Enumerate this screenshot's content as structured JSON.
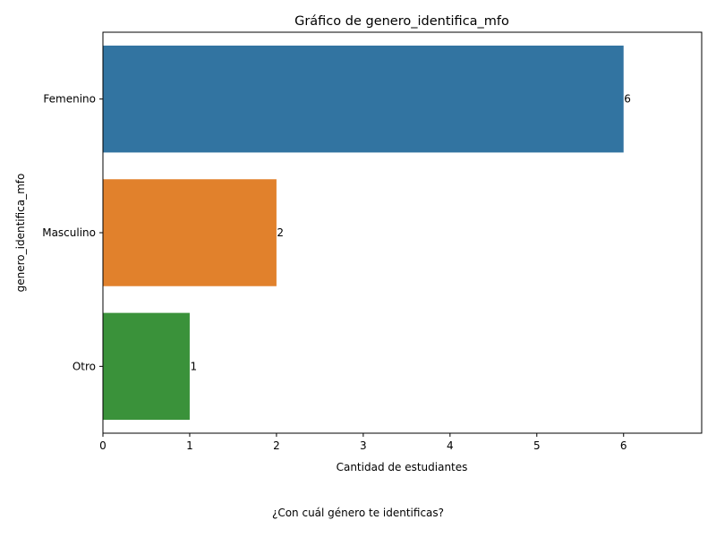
{
  "chart_data": {
    "type": "bar",
    "orientation": "horizontal",
    "title": "Gráfico de genero_identifica_mfo",
    "xlabel": "Cantidad de estudiantes",
    "ylabel": "genero_identifica_mfo",
    "categories": [
      "Femenino",
      "Masculino",
      "Otro"
    ],
    "values": [
      6,
      2,
      1
    ],
    "data_labels": [
      "6",
      "2",
      "1"
    ],
    "colors": [
      "#3274a1",
      "#e1812c",
      "#3a923a"
    ],
    "xlim": [
      0,
      6.9
    ],
    "xticks": [
      0,
      1,
      2,
      3,
      4,
      5,
      6
    ],
    "grid": false,
    "legend": "none"
  },
  "caption": "¿Con cuál género te identificas?"
}
